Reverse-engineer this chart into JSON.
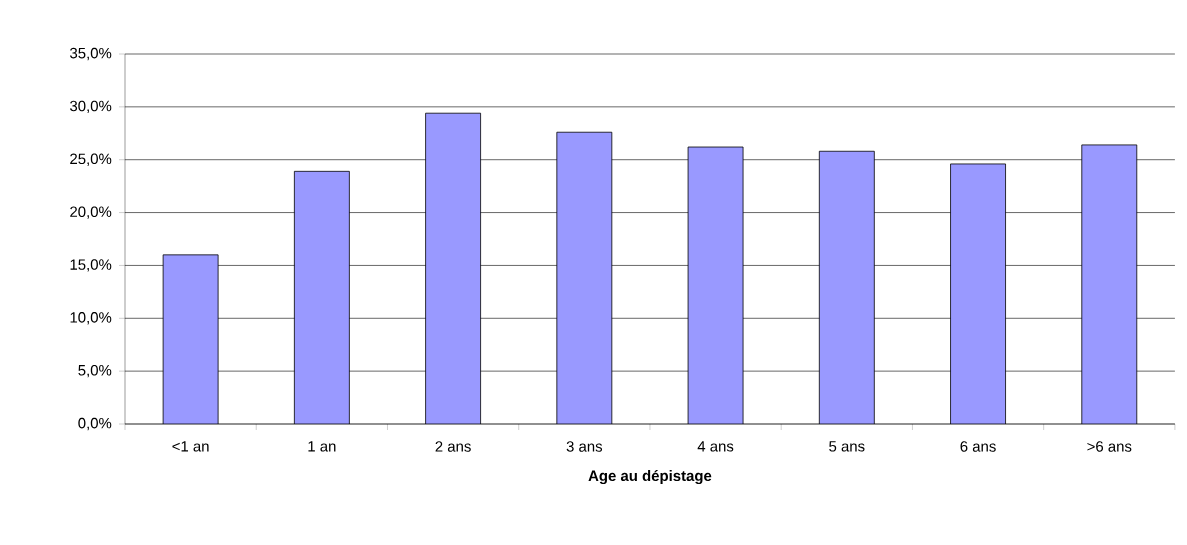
{
  "chart_data": {
    "type": "bar",
    "xlabel": "Age au dépistage",
    "categories": [
      "<1 an",
      "1 an",
      "2 ans",
      "3 ans",
      "4 ans",
      "5 ans",
      "6 ans",
      ">6 ans"
    ],
    "values": [
      16.0,
      23.9,
      29.4,
      27.6,
      26.2,
      25.8,
      24.6,
      26.4
    ],
    "color": "#9999ff",
    "ylim": [
      0,
      35
    ],
    "yticks": [
      {
        "value": 0,
        "label": "0,0%"
      },
      {
        "value": 5,
        "label": "5,0%"
      },
      {
        "value": 10,
        "label": "10,0%"
      },
      {
        "value": 15,
        "label": "15,0%"
      },
      {
        "value": 20,
        "label": "20,0%"
      },
      {
        "value": 25,
        "label": "25,0%"
      },
      {
        "value": 30,
        "label": "30,0%"
      },
      {
        "value": 35,
        "label": "35,0%"
      }
    ],
    "grid": "y"
  }
}
